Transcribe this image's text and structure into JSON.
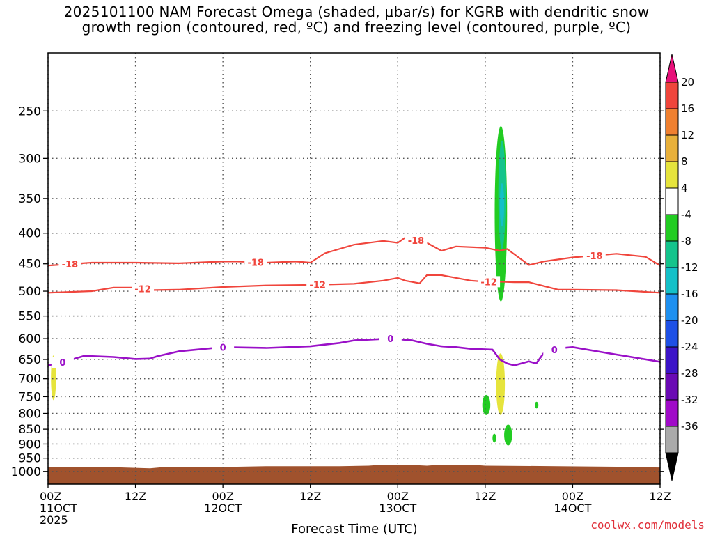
{
  "title_line1": "2025101100 NAM Forecast Omega (shaded, μbar/s) for KGRB with dendritic snow",
  "title_line2": "growth region (contoured, red, ºC) and freezing level (contoured, purple, ºC)",
  "credit": "coolwx.com/models",
  "colors": {
    "red_contour": "#f0453c",
    "purple_contour": "#9a10c8",
    "terrain": "#a0522d",
    "grid": "#555555"
  },
  "chart_data": {
    "type": "heatmap",
    "xlabel": "Forecast Time (UTC)",
    "ylabel": "",
    "x_range_hours": [
      0,
      84
    ],
    "y_range_hpa": [
      200,
      1050
    ],
    "y_scale": "log-pressure (inverted)",
    "yticks": [
      250,
      300,
      350,
      400,
      450,
      500,
      550,
      600,
      650,
      700,
      750,
      800,
      850,
      900,
      950,
      1000
    ],
    "xticks": [
      {
        "hour": 0,
        "labels": [
          "00Z",
          "11OCT",
          "2025"
        ]
      },
      {
        "hour": 12,
        "labels": [
          "12Z"
        ]
      },
      {
        "hour": 24,
        "labels": [
          "00Z",
          "12OCT"
        ]
      },
      {
        "hour": 36,
        "labels": [
          "12Z"
        ]
      },
      {
        "hour": 48,
        "labels": [
          "00Z",
          "13OCT"
        ]
      },
      {
        "hour": 60,
        "labels": [
          "12Z"
        ]
      },
      {
        "hour": 72,
        "labels": [
          "00Z",
          "14OCT"
        ]
      },
      {
        "hour": 84,
        "labels": [
          "12Z"
        ]
      }
    ],
    "grid": true,
    "colorbar": {
      "labels": [
        "20",
        "16",
        "12",
        "8",
        "4",
        "-4",
        "-8",
        "-12",
        "-16",
        "-20",
        "-24",
        "-28",
        "-32",
        "-36"
      ],
      "colors": [
        "#e8117a",
        "#f0453c",
        "#f08030",
        "#e8b03a",
        "#e6e43c",
        "#ffffff",
        "#22cc22",
        "#14c48c",
        "#14c0c8",
        "#1e90f0",
        "#1e50e6",
        "#3c14c8",
        "#6a0ab4",
        "#a00ac8",
        "#aaaaaa",
        "#000000"
      ]
    },
    "series": [
      {
        "name": "-18",
        "kind": "dendritic snow growth contour (red)",
        "label_hours": [
          3,
          28.5,
          50.5,
          75
        ],
        "points": [
          [
            0,
            453
          ],
          [
            6,
            448
          ],
          [
            12,
            448
          ],
          [
            18,
            449
          ],
          [
            24,
            446
          ],
          [
            26,
            446
          ],
          [
            30,
            448
          ],
          [
            34,
            446
          ],
          [
            36,
            448
          ],
          [
            38,
            432
          ],
          [
            42,
            418
          ],
          [
            46,
            412
          ],
          [
            48,
            415
          ],
          [
            49,
            407
          ],
          [
            52,
            415
          ],
          [
            54,
            428
          ],
          [
            56,
            421
          ],
          [
            60,
            423
          ],
          [
            62,
            428
          ],
          [
            63,
            425
          ],
          [
            66,
            452
          ],
          [
            68,
            446
          ],
          [
            72,
            439
          ],
          [
            78,
            433
          ],
          [
            82,
            438
          ],
          [
            84,
            453
          ]
        ]
      },
      {
        "name": "-12",
        "kind": "dendritic snow growth contour (red)",
        "label_hours": [
          13,
          37,
          60.5
        ],
        "points": [
          [
            0,
            503
          ],
          [
            6,
            500
          ],
          [
            9,
            493
          ],
          [
            12,
            493
          ],
          [
            14,
            498
          ],
          [
            18,
            497
          ],
          [
            24,
            492
          ],
          [
            30,
            489
          ],
          [
            36,
            488
          ],
          [
            42,
            486
          ],
          [
            46,
            480
          ],
          [
            48,
            475
          ],
          [
            49,
            480
          ],
          [
            51,
            485
          ],
          [
            52,
            470
          ],
          [
            54,
            470
          ],
          [
            58,
            480
          ],
          [
            60,
            482
          ],
          [
            62,
            482
          ],
          [
            64,
            483
          ],
          [
            66,
            483
          ],
          [
            68,
            490
          ],
          [
            70,
            497
          ],
          [
            72,
            497
          ],
          [
            78,
            498
          ],
          [
            84,
            503
          ]
        ]
      },
      {
        "name": "0",
        "kind": "freezing level contour (purple)",
        "label_hours": [
          2,
          24,
          47,
          69.5
        ],
        "points": [
          [
            0,
            665
          ],
          [
            2,
            657
          ],
          [
            5,
            641
          ],
          [
            9,
            644
          ],
          [
            12,
            649
          ],
          [
            14,
            648
          ],
          [
            15,
            642
          ],
          [
            18,
            630
          ],
          [
            24,
            620
          ],
          [
            30,
            622
          ],
          [
            36,
            618
          ],
          [
            40,
            610
          ],
          [
            42,
            604
          ],
          [
            47,
            600
          ],
          [
            50,
            604
          ],
          [
            52,
            612
          ],
          [
            54,
            618
          ],
          [
            56,
            620
          ],
          [
            58,
            624
          ],
          [
            61,
            626
          ],
          [
            62,
            650
          ],
          [
            63,
            660
          ],
          [
            64,
            665
          ],
          [
            66,
            655
          ],
          [
            67,
            660
          ],
          [
            68,
            635
          ],
          [
            70,
            623
          ],
          [
            72,
            620
          ],
          [
            76,
            632
          ],
          [
            84,
            656
          ]
        ]
      }
    ],
    "shaded_regions": [
      {
        "omega_bin": "-4 to -8",
        "color": "#22cc22",
        "hours": [
          61.3,
          63.0
        ],
        "hpa": [
          265,
          520
        ]
      },
      {
        "omega_bin": "-8 to -12",
        "color": "#14c48c",
        "hours": [
          61.8,
          62.8
        ],
        "hpa": [
          280,
          425
        ]
      },
      {
        "omega_bin": "-12 to -16",
        "color": "#14c0c8",
        "hours": [
          62.0,
          62.6
        ],
        "hpa": [
          330,
          390
        ]
      },
      {
        "omega_bin": "4 to 8",
        "color": "#e6e43c",
        "hours": [
          61.5,
          62.7
        ],
        "hpa": [
          635,
          805
        ]
      },
      {
        "omega_bin": "4 to 8",
        "color": "#e6e43c",
        "hours": [
          0.4,
          1.1
        ],
        "hpa": [
          640,
          760
        ]
      },
      {
        "omega_bin": "-4 to -8",
        "color": "#22cc22",
        "hours": [
          59.6,
          60.7
        ],
        "hpa": [
          745,
          805
        ]
      },
      {
        "omega_bin": "-4 to -8",
        "color": "#22cc22",
        "hours": [
          62.6,
          63.7
        ],
        "hpa": [
          835,
          905
        ]
      },
      {
        "omega_bin": "-4 to -8",
        "color": "#22cc22",
        "hours": [
          61.0,
          61.5
        ],
        "hpa": [
          865,
          895
        ]
      },
      {
        "omega_bin": "-4 to -8",
        "color": "#22cc22",
        "hours": [
          66.8,
          67.3
        ],
        "hpa": [
          765,
          785
        ]
      }
    ],
    "terrain_hpa": [
      [
        0,
        983
      ],
      [
        8,
        983
      ],
      [
        14,
        988
      ],
      [
        16,
        983
      ],
      [
        24,
        983
      ],
      [
        30,
        980
      ],
      [
        40,
        980
      ],
      [
        44,
        978
      ],
      [
        46,
        974
      ],
      [
        49,
        974
      ],
      [
        52,
        978
      ],
      [
        54,
        974
      ],
      [
        58,
        974
      ],
      [
        60,
        978
      ],
      [
        70,
        980
      ],
      [
        78,
        982
      ],
      [
        84,
        985
      ]
    ]
  }
}
